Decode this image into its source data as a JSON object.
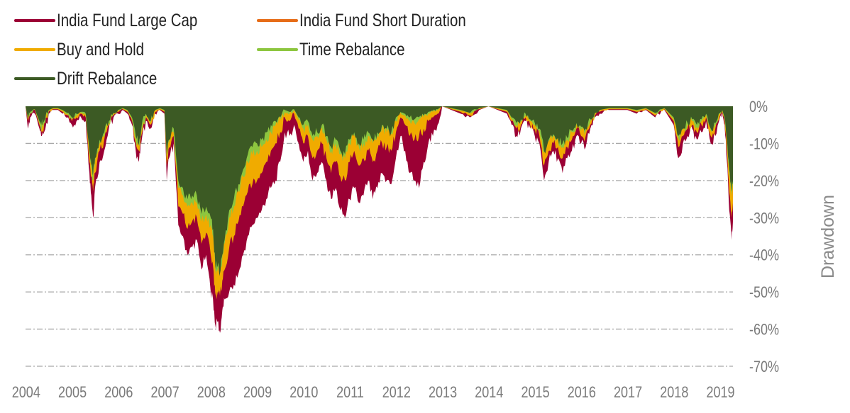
{
  "chart_data": {
    "type": "area",
    "title": "",
    "xlabel": "",
    "ylabel": "Drawdown",
    "xlim": [
      2004.0,
      2019.28
    ],
    "ylim": [
      -70,
      0
    ],
    "grid": true,
    "legend_position": "top-left",
    "x_ticks": [
      "2004",
      "2005",
      "2006",
      "2007",
      "2008",
      "2009",
      "2010",
      "2011",
      "2012",
      "2013",
      "2014",
      "2015",
      "2016",
      "2017",
      "2018",
      "2019"
    ],
    "y_ticks": [
      "0%",
      "-10%",
      "-20%",
      "-30%",
      "-40%",
      "-50%",
      "-60%",
      "-70%"
    ],
    "y_tick_values": [
      0,
      -10,
      -20,
      -30,
      -40,
      -50,
      -60,
      -70
    ],
    "legend": [
      {
        "name": "India Fund Large Cap",
        "color": "#9B0034"
      },
      {
        "name": "India Fund Short Duration",
        "color": "#E66C17"
      },
      {
        "name": "Buy and Hold",
        "color": "#F0AB00"
      },
      {
        "name": "Time Rebalance",
        "color": "#8DC63F"
      },
      {
        "name": "Drift Rebalance",
        "color": "#3C5A24"
      }
    ],
    "x": [
      2004.0,
      2004.05,
      2004.1,
      2004.2,
      2004.3,
      2004.35,
      2004.4,
      2004.5,
      2004.6,
      2004.7,
      2004.8,
      2004.9,
      2005.0,
      2005.1,
      2005.2,
      2005.3,
      2005.38,
      2005.42,
      2005.46,
      2005.5,
      2005.6,
      2005.7,
      2005.8,
      2005.9,
      2006.0,
      2006.1,
      2006.2,
      2006.3,
      2006.38,
      2006.45,
      2006.5,
      2006.6,
      2006.7,
      2006.8,
      2006.9,
      2007.0,
      2007.05,
      2007.1,
      2007.2,
      2007.3,
      2007.4,
      2007.5,
      2007.6,
      2007.7,
      2007.8,
      2007.9,
      2008.0,
      2008.05,
      2008.1,
      2008.15,
      2008.2,
      2008.25,
      2008.3,
      2008.4,
      2008.5,
      2008.6,
      2008.7,
      2008.8,
      2008.9,
      2009.0,
      2009.1,
      2009.2,
      2009.3,
      2009.4,
      2009.5,
      2009.6,
      2009.7,
      2009.8,
      2009.9,
      2010.0,
      2010.1,
      2010.2,
      2010.3,
      2010.4,
      2010.5,
      2010.6,
      2010.7,
      2010.8,
      2010.9,
      2011.0,
      2011.1,
      2011.2,
      2011.3,
      2011.4,
      2011.5,
      2011.6,
      2011.7,
      2011.8,
      2011.9,
      2012.0,
      2012.1,
      2012.2,
      2012.3,
      2012.4,
      2012.5,
      2012.6,
      2012.7,
      2012.8,
      2012.9,
      2013.0,
      2013.2,
      2013.4,
      2013.6,
      2013.8,
      2014.0,
      2014.2,
      2014.4,
      2014.5,
      2014.6,
      2014.7,
      2014.8,
      2014.9,
      2015.0,
      2015.1,
      2015.2,
      2015.3,
      2015.4,
      2015.5,
      2015.6,
      2015.7,
      2015.8,
      2015.9,
      2016.0,
      2016.1,
      2016.2,
      2016.3,
      2016.4,
      2016.6,
      2016.8,
      2017.0,
      2017.2,
      2017.4,
      2017.6,
      2017.8,
      2018.0,
      2018.1,
      2018.2,
      2018.3,
      2018.4,
      2018.5,
      2018.6,
      2018.7,
      2018.8,
      2018.9,
      2019.0,
      2019.05,
      2019.1,
      2019.15,
      2019.2,
      2019.25,
      2019.28
    ],
    "series": [
      {
        "name": "India Fund Large Cap",
        "values": [
          0,
          -6,
          -3,
          -2,
          -6,
          -8,
          -7,
          -2,
          -1,
          -1,
          -2,
          -3,
          -5,
          -4,
          -3,
          -4,
          -18,
          -24,
          -30,
          -22,
          -15,
          -12,
          -6,
          -3,
          -2,
          -1,
          -2,
          -5,
          -12,
          -15,
          -10,
          -4,
          -6,
          -2,
          -1,
          -2,
          -20,
          -14,
          -10,
          -32,
          -35,
          -40,
          -38,
          -36,
          -44,
          -40,
          -50,
          -52,
          -59,
          -58,
          -61,
          -55,
          -52,
          -50,
          -48,
          -45,
          -40,
          -35,
          -32,
          -30,
          -28,
          -25,
          -22,
          -20,
          -15,
          -7,
          -8,
          -5,
          -10,
          -15,
          -12,
          -20,
          -18,
          -15,
          -20,
          -25,
          -22,
          -28,
          -30,
          -25,
          -22,
          -26,
          -24,
          -20,
          -25,
          -22,
          -18,
          -20,
          -21,
          -14,
          -8,
          -12,
          -18,
          -20,
          -22,
          -15,
          -10,
          -8,
          -5,
          0,
          -1,
          -2,
          -3,
          -1,
          0,
          -1,
          -2,
          -5,
          -8,
          -6,
          -4,
          -6,
          -8,
          -10,
          -20,
          -15,
          -12,
          -14,
          -18,
          -14,
          -12,
          -8,
          -10,
          -11,
          -6,
          -3,
          -2,
          -1,
          -1,
          -1,
          -2,
          -1,
          -3,
          -1,
          -5,
          -14,
          -10,
          -8,
          -6,
          -9,
          -7,
          -4,
          -10,
          -8,
          -3,
          -2,
          -5,
          -15,
          -28,
          -36,
          -31
        ]
      },
      {
        "name": "India Fund Short Duration",
        "values": [
          0,
          0,
          0,
          0,
          0,
          0,
          0,
          0,
          0,
          0,
          0,
          0,
          0,
          0,
          0,
          0,
          0,
          0,
          0,
          0,
          0,
          0,
          0,
          0,
          0,
          0,
          0,
          0,
          0,
          0,
          0,
          0,
          0,
          0,
          0,
          0,
          0,
          0,
          0,
          0,
          0,
          0,
          0,
          0,
          0,
          0,
          0,
          0,
          0,
          0,
          0,
          0,
          0,
          0,
          0,
          0,
          0,
          0,
          0,
          0,
          0,
          0,
          0,
          0,
          0,
          0,
          0,
          0,
          0,
          0,
          0,
          0,
          0,
          0,
          0,
          0,
          0,
          0,
          0,
          0,
          0,
          0,
          0,
          0,
          0,
          0,
          0,
          0,
          0,
          0,
          0,
          0,
          0,
          0,
          0,
          0,
          0,
          0,
          0,
          0,
          0,
          0,
          0,
          0,
          0,
          0,
          0,
          0,
          0,
          0,
          0,
          0,
          0,
          0,
          0,
          0,
          0,
          0,
          0,
          0,
          0,
          0,
          0,
          0,
          0,
          0,
          0,
          0,
          0,
          0,
          0,
          0,
          0,
          0,
          0,
          0,
          0,
          0,
          0,
          0,
          0,
          0,
          0,
          0,
          0,
          0,
          0,
          0,
          0,
          0,
          0
        ]
      },
      {
        "name": "Buy and Hold",
        "values": [
          0,
          -4,
          -2,
          -1,
          -5,
          -7,
          -5,
          -1.5,
          -0.8,
          -0.8,
          -1.5,
          -2.5,
          -4,
          -3,
          -2,
          -3,
          -15,
          -19,
          -23,
          -18,
          -12,
          -9,
          -5,
          -2.5,
          -1.5,
          -0.8,
          -1.5,
          -4,
          -10,
          -12,
          -8,
          -3,
          -5,
          -1.5,
          -0.8,
          -1.5,
          -16,
          -11,
          -8,
          -27,
          -29,
          -33,
          -31,
          -30,
          -37,
          -34,
          -40,
          -43,
          -51,
          -50,
          -51,
          -47,
          -44,
          -38,
          -35,
          -31,
          -27,
          -23,
          -21,
          -20,
          -18,
          -15,
          -12,
          -10,
          -7,
          -3,
          -4,
          -2,
          -6,
          -10,
          -8,
          -14,
          -12,
          -10,
          -14,
          -18,
          -15,
          -19,
          -20,
          -15,
          -12,
          -16,
          -14,
          -12,
          -15,
          -12,
          -10,
          -11,
          -12,
          -7,
          -3,
          -5,
          -8,
          -9,
          -8,
          -6,
          -4,
          -3,
          -2,
          0,
          -0.8,
          -1.5,
          -2.5,
          -0.8,
          0,
          -0.8,
          -1.5,
          -4,
          -6,
          -5,
          -3,
          -5,
          -6,
          -8,
          -16,
          -12,
          -10,
          -11,
          -14,
          -11,
          -9,
          -6,
          -8,
          -8,
          -5,
          -2.5,
          -1.5,
          -0.8,
          -0.8,
          -0.8,
          -1.5,
          -0.8,
          -2.5,
          -0.8,
          -4,
          -11,
          -8,
          -6,
          -5,
          -7,
          -5,
          -3,
          -8,
          -6,
          -2.5,
          -1.5,
          -4,
          -12,
          -23,
          -30,
          -26
        ]
      },
      {
        "name": "Time Rebalance",
        "values": [
          0,
          -3.5,
          -1.8,
          -0.9,
          -4.5,
          -6,
          -4.5,
          -1.2,
          -0.6,
          -0.6,
          -1.2,
          -2,
          -3.5,
          -2.5,
          -1.8,
          -2.5,
          -13,
          -17,
          -20,
          -15,
          -10,
          -8,
          -4.5,
          -2,
          -1.2,
          -0.6,
          -1.2,
          -3.5,
          -9,
          -10.5,
          -7,
          -2.5,
          -4.5,
          -1.2,
          -0.6,
          -1.2,
          -14,
          -9.5,
          -7,
          -22,
          -24,
          -27,
          -26,
          -26,
          -31,
          -29,
          -32,
          -35,
          -44,
          -44,
          -45,
          -41,
          -37,
          -30,
          -27,
          -23,
          -19,
          -15,
          -13,
          -12,
          -11,
          -9,
          -7,
          -5,
          -3.5,
          -1.5,
          -2,
          -1,
          -3.5,
          -6,
          -5,
          -9,
          -8,
          -6,
          -9,
          -12,
          -10,
          -13,
          -14,
          -10,
          -8,
          -11,
          -10,
          -8,
          -10,
          -8,
          -6,
          -7,
          -7.5,
          -4,
          -1.8,
          -2.5,
          -4,
          -4.5,
          -3.5,
          -3,
          -2,
          -1.5,
          -1,
          0,
          -0.6,
          -1.2,
          -2,
          -0.6,
          0,
          -0.6,
          -1.2,
          -3.5,
          -5,
          -4,
          -2.5,
          -4,
          -5,
          -6.5,
          -12.5,
          -9.5,
          -8,
          -9,
          -11,
          -9,
          -7,
          -5,
          -6,
          -6.5,
          -4,
          -2,
          -1.2,
          -0.6,
          -0.6,
          -0.6,
          -1.2,
          -0.6,
          -2,
          -0.6,
          -3.5,
          -8.5,
          -6.5,
          -5,
          -4,
          -5.5,
          -4,
          -2.5,
          -6.5,
          -5,
          -2,
          -1.2,
          -3.5,
          -9.5,
          -18,
          -24,
          -21
        ]
      },
      {
        "name": "Drift Rebalance",
        "values": [
          0,
          -3,
          -1.5,
          -0.8,
          -4,
          -5,
          -4,
          -1,
          -0.5,
          -0.5,
          -1,
          -1.8,
          -3,
          -2,
          -1.5,
          -2,
          -12,
          -16,
          -18,
          -14,
          -9,
          -7,
          -4,
          -1.8,
          -1,
          -0.5,
          -1,
          -3,
          -8,
          -10,
          -6,
          -2,
          -4,
          -1,
          -0.5,
          -1,
          -13,
          -9,
          -6,
          -20,
          -22,
          -25,
          -24,
          -24,
          -29,
          -27,
          -30,
          -33,
          -43,
          -43,
          -45,
          -40,
          -36,
          -28,
          -25,
          -21,
          -17,
          -13,
          -11,
          -10,
          -9,
          -7,
          -5,
          -4,
          -3,
          -1,
          -1.5,
          -0.8,
          -3,
          -5,
          -4,
          -8,
          -7,
          -5,
          -8,
          -11,
          -9,
          -12,
          -13,
          -9,
          -7,
          -10,
          -9,
          -7,
          -9,
          -7,
          -5,
          -6,
          -7,
          -3,
          -1.5,
          -2,
          -3,
          -3.5,
          -3,
          -2.5,
          -1.5,
          -1.2,
          -0.8,
          0,
          -0.5,
          -1,
          -1.8,
          -0.5,
          0,
          -0.5,
          -1,
          -3,
          -4.5,
          -3.5,
          -2,
          -3.5,
          -4.5,
          -6,
          -12,
          -9,
          -7.5,
          -8.5,
          -10,
          -8.5,
          -6.5,
          -4.5,
          -5.5,
          -6,
          -3.5,
          -1.8,
          -1,
          -0.5,
          -0.5,
          -0.5,
          -1,
          -0.5,
          -1.8,
          -0.5,
          -3,
          -8,
          -6,
          -4.5,
          -3.5,
          -5,
          -3.5,
          -2,
          -6,
          -4.5,
          -1.8,
          -1,
          -3,
          -9,
          -17,
          -23,
          -20
        ]
      }
    ]
  }
}
